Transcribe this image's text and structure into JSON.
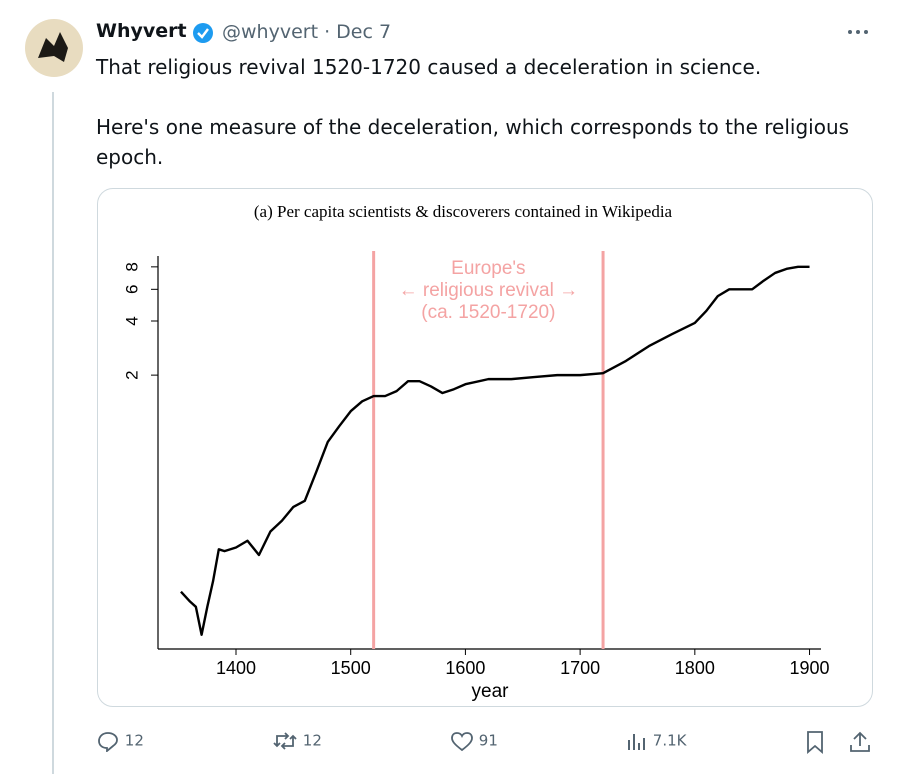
{
  "tweet": {
    "author": "Whyvert",
    "handle": "@whyvert",
    "separator": "·",
    "date": "Dec 7",
    "text": [
      "That religious revival 1520-1720 caused a deceleration in science.",
      "Here's one measure of the deceleration, which corresponds to the religious epoch."
    ],
    "stats": {
      "replies": "12",
      "reposts": "12",
      "likes": "91",
      "views": "7.1K"
    }
  },
  "chart_data": {
    "type": "line",
    "title": "(a) Per capita scientists & discoverers contained in Wikipedia",
    "x_label": "year",
    "x": [
      1352,
      1360,
      1365,
      1370,
      1375,
      1380,
      1385,
      1390,
      1400,
      1410,
      1420,
      1430,
      1440,
      1450,
      1460,
      1470,
      1480,
      1490,
      1500,
      1510,
      1520,
      1530,
      1540,
      1550,
      1560,
      1570,
      1580,
      1590,
      1600,
      1620,
      1640,
      1660,
      1680,
      1700,
      1720,
      1740,
      1760,
      1780,
      1800,
      1810,
      1820,
      1830,
      1840,
      1850,
      1860,
      1870,
      1880,
      1890,
      1900
    ],
    "series": [
      {
        "color": "#000000",
        "values": [
          0.125,
          0.11,
          0.103,
          0.072,
          0.103,
          0.143,
          0.215,
          0.21,
          0.22,
          0.24,
          0.2,
          0.27,
          0.31,
          0.37,
          0.4,
          0.58,
          0.85,
          1.04,
          1.26,
          1.43,
          1.53,
          1.53,
          1.63,
          1.85,
          1.85,
          1.73,
          1.59,
          1.67,
          1.78,
          1.9,
          1.9,
          1.95,
          2.0,
          2.0,
          2.05,
          2.4,
          2.9,
          3.38,
          3.9,
          4.55,
          5.5,
          6.0,
          6.0,
          6.0,
          6.7,
          7.4,
          7.8,
          8.0,
          8.0
        ]
      }
    ],
    "xlim": [
      1332,
      1910
    ],
    "xticks": [
      1400,
      1500,
      1600,
      1700,
      1800,
      1900
    ],
    "ylim": [
      0.06,
      9.8
    ],
    "yticks": [
      2,
      4,
      6,
      8
    ],
    "log_y": true,
    "vlines": [
      1520,
      1720
    ],
    "vline_color": "#f4a3a3",
    "annotation": [
      "Europe's",
      "← religious revival →",
      "(ca. 1520-1720)"
    ]
  }
}
